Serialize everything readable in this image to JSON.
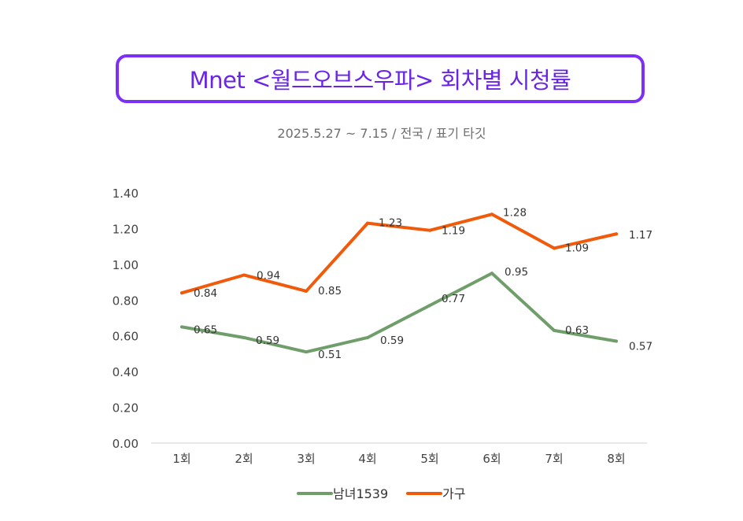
{
  "chart_data": {
    "type": "line",
    "title": "Mnet <월드오브스우파> 회차별 시청률",
    "subtitle": "2025.5.27 ~ 7.15 / 전국 / 표기 타깃",
    "categories": [
      "1회",
      "2회",
      "3회",
      "4회",
      "5회",
      "6회",
      "7회",
      "8회"
    ],
    "ylim": [
      0,
      1.4
    ],
    "yticks": [
      "0.00",
      "0.20",
      "0.40",
      "0.60",
      "0.80",
      "1.00",
      "1.20",
      "1.40"
    ],
    "grid": false,
    "legend_position": "bottom",
    "series": [
      {
        "name": "남녀1539",
        "color": "#6f9e6a",
        "values": [
          0.65,
          0.59,
          0.51,
          0.59,
          0.77,
          0.95,
          0.63,
          0.57
        ],
        "labels": [
          "0.65",
          "0.59",
          "0.51",
          "0.59",
          "0.77",
          "0.95",
          "0.63",
          "0.57"
        ]
      },
      {
        "name": "가구",
        "color": "#f05a0a",
        "values": [
          0.84,
          0.94,
          0.85,
          1.23,
          1.19,
          1.28,
          1.09,
          1.17
        ],
        "labels": [
          "0.84",
          "0.94",
          "0.85",
          "1.23",
          "1.19",
          "1.28",
          "1.09",
          "1.17"
        ]
      }
    ]
  }
}
